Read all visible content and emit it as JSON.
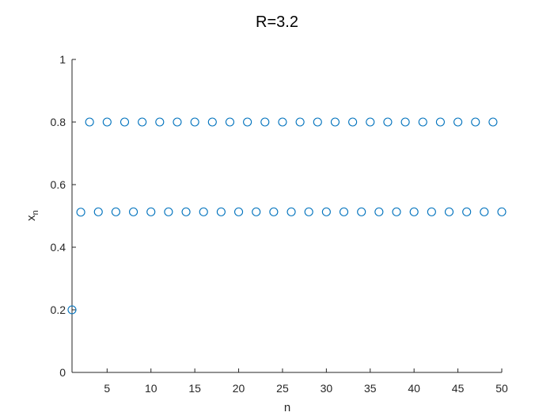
{
  "chart_data": {
    "type": "scatter",
    "title": "R=3.2",
    "xlabel": "n",
    "ylabel": "x",
    "ylabel_subscript": "n",
    "xlim": [
      1,
      50
    ],
    "ylim": [
      0,
      1
    ],
    "xticks": [
      5,
      10,
      15,
      20,
      25,
      30,
      35,
      40,
      45,
      50
    ],
    "yticks": [
      0,
      0.2,
      0.4,
      0.6,
      0.8,
      1
    ],
    "ytick_labels": [
      "0",
      "0.2",
      "0.4",
      "0.6",
      "0.8",
      "1"
    ],
    "marker": "circle-open",
    "grid": false,
    "colors": {
      "marker": "#0072BD",
      "axis": "#262626"
    },
    "series": [
      {
        "x": [
          1,
          2,
          3,
          4,
          5,
          6,
          7,
          8,
          9,
          10,
          11,
          12,
          13,
          14,
          15,
          16,
          17,
          18,
          19,
          20,
          21,
          22,
          23,
          24,
          25,
          26,
          27,
          28,
          29,
          30,
          31,
          32,
          33,
          34,
          35,
          36,
          37,
          38,
          39,
          40,
          41,
          42,
          43,
          44,
          45,
          46,
          47,
          48,
          49,
          50
        ],
        "y": [
          0.2,
          0.512,
          0.8,
          0.513,
          0.8,
          0.513,
          0.8,
          0.513,
          0.8,
          0.513,
          0.8,
          0.513,
          0.8,
          0.513,
          0.8,
          0.513,
          0.8,
          0.513,
          0.8,
          0.513,
          0.8,
          0.513,
          0.8,
          0.513,
          0.8,
          0.513,
          0.8,
          0.513,
          0.8,
          0.513,
          0.8,
          0.513,
          0.8,
          0.513,
          0.8,
          0.513,
          0.8,
          0.513,
          0.8,
          0.513,
          0.8,
          0.513,
          0.8,
          0.513,
          0.8,
          0.513,
          0.8,
          0.513,
          0.8,
          0.513
        ]
      }
    ]
  }
}
